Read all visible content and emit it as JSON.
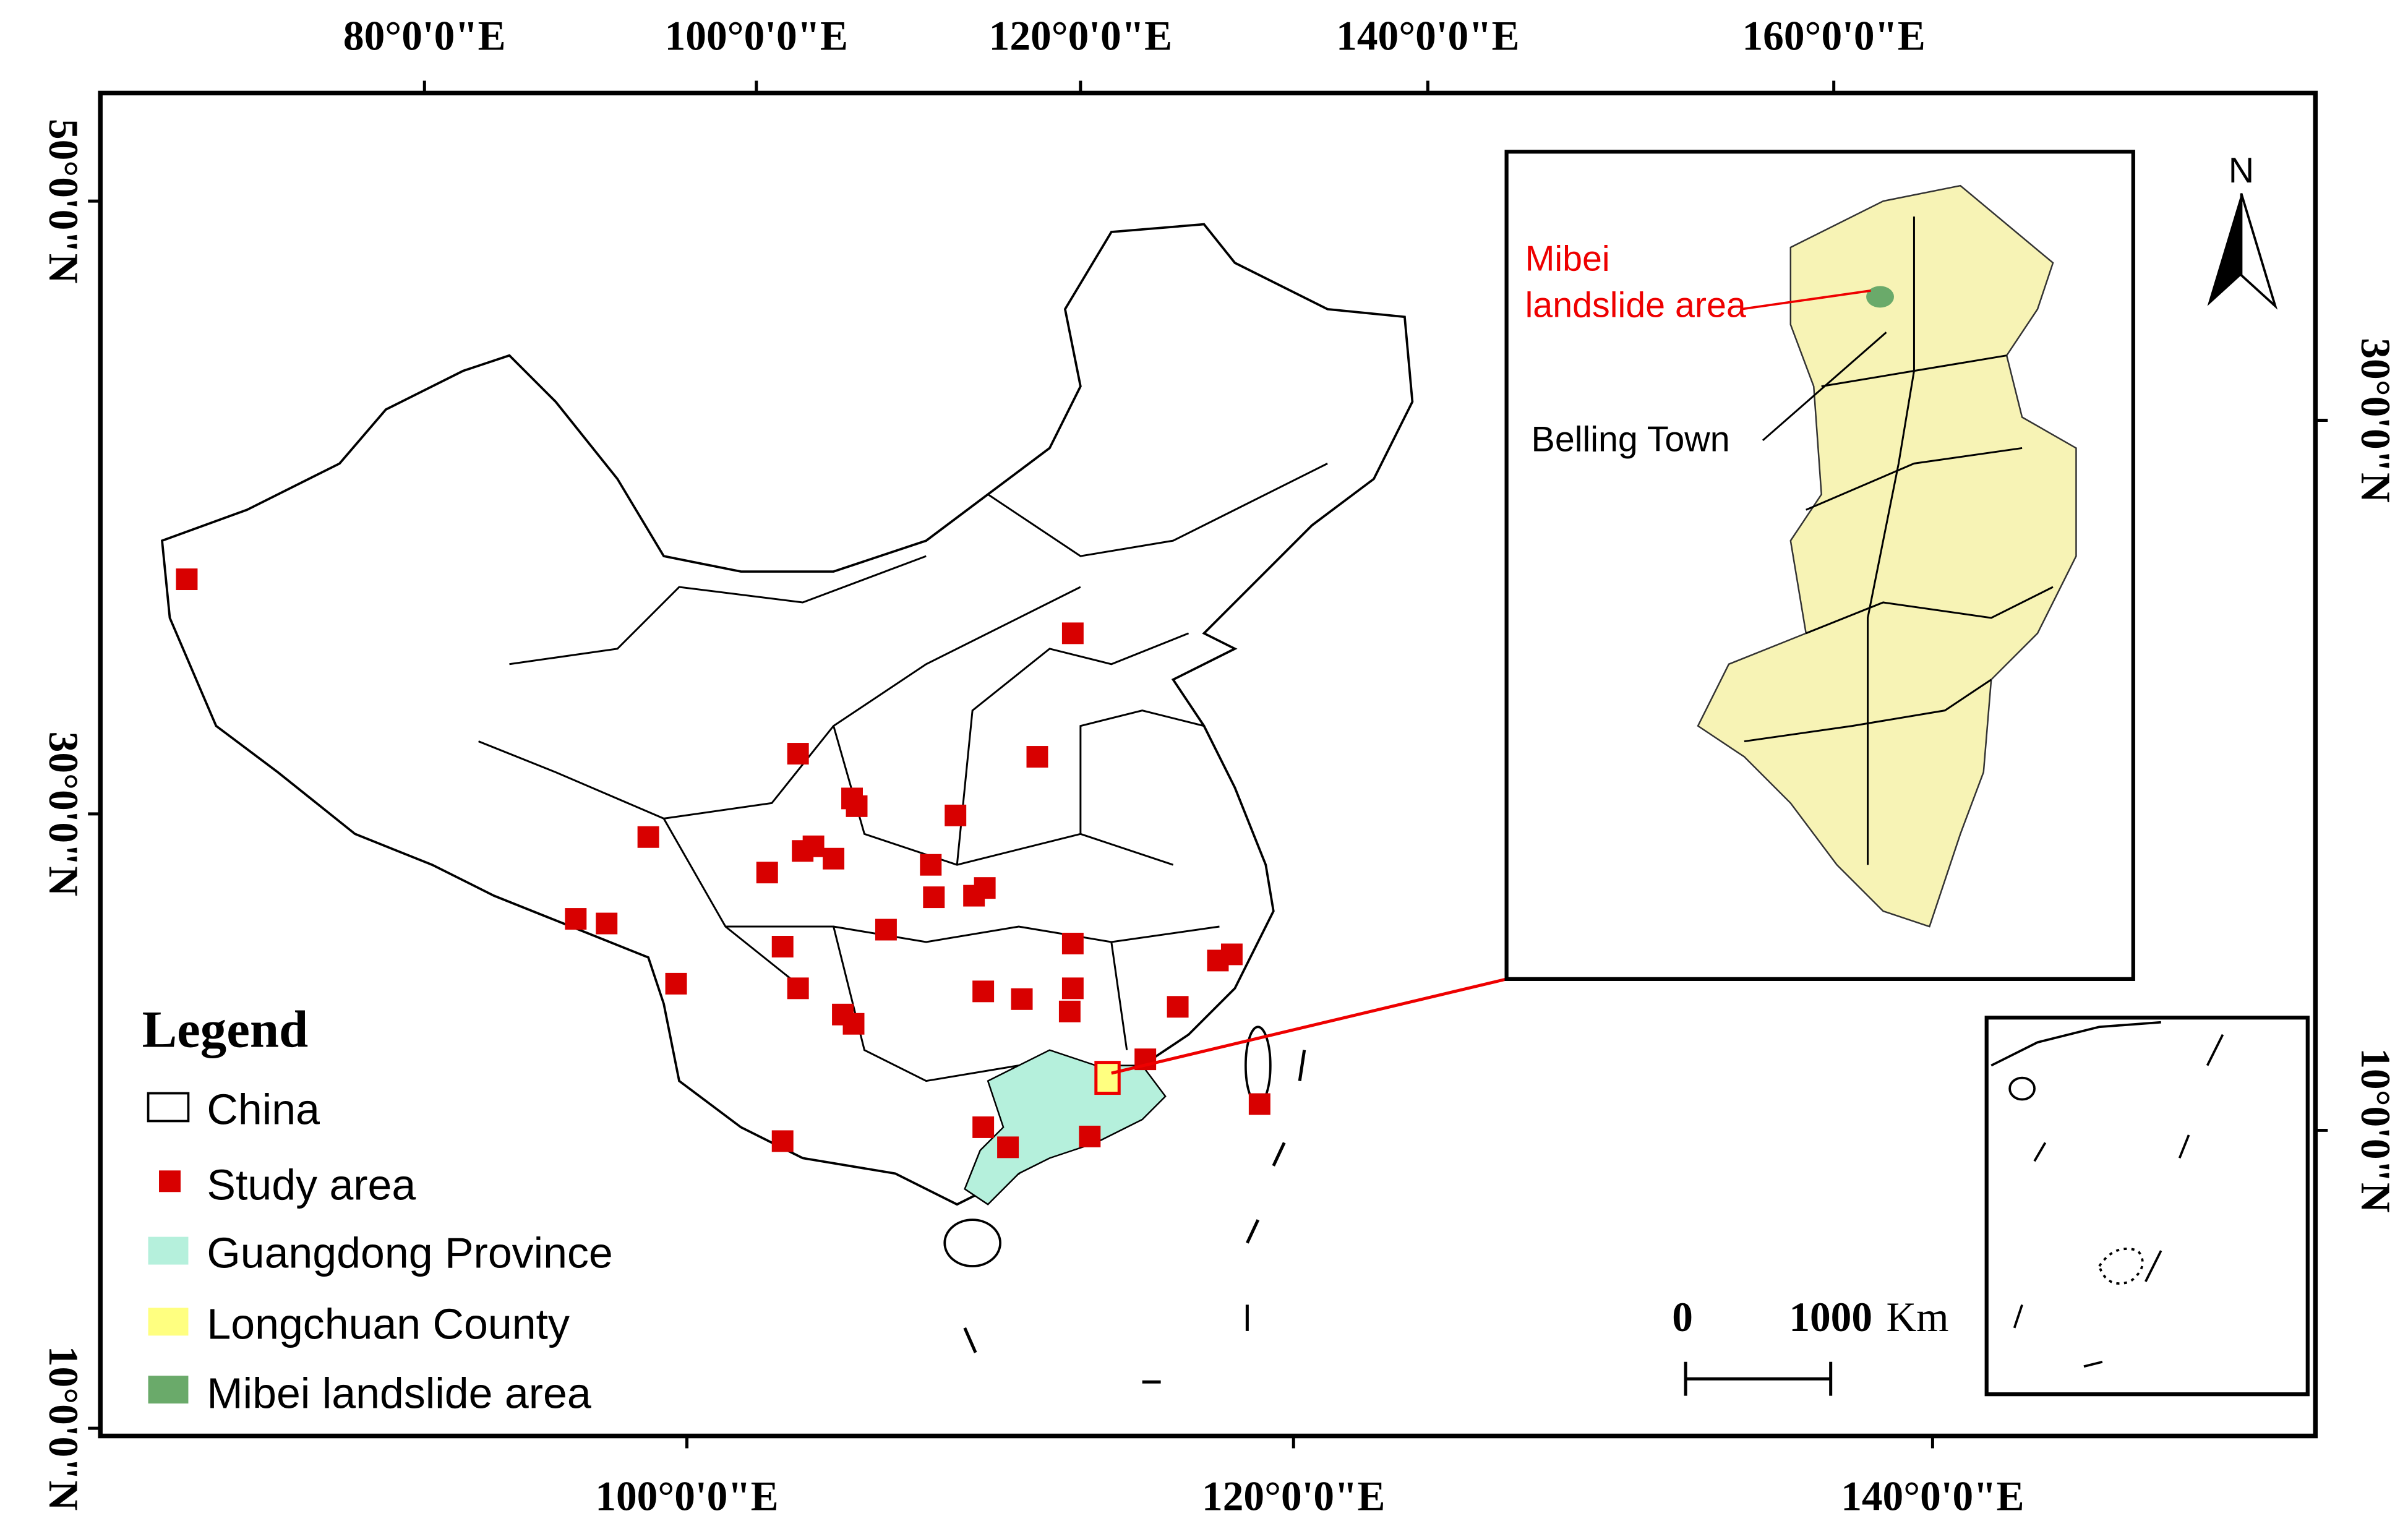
{
  "map": {
    "top_labels": [
      "80°0'0\"E",
      "100°0'0\"E",
      "120°0'0\"E",
      "140°0'0\"E",
      "160°0'0\"E"
    ],
    "bottom_labels": [
      "100°0'0\"E",
      "120°0'0\"E",
      "140°0'0\"E"
    ],
    "left_labels": [
      "50°0'0\"N",
      "30°0'0\"N",
      "10°0'0\"N"
    ],
    "right_labels": [
      "30°0'0\"N",
      "10°0'0\"N"
    ],
    "legend": {
      "title": "Legend",
      "items": [
        "China",
        "Study area",
        "Guangdong Province",
        "Longchuan County",
        "Mibei landslide area"
      ]
    },
    "inset": {
      "label_line1": "Mibei",
      "label_line2": "landslide area",
      "town": "Belling Town"
    },
    "north": "N",
    "scale": {
      "start": "0",
      "end": "1000",
      "unit": "Km"
    }
  }
}
